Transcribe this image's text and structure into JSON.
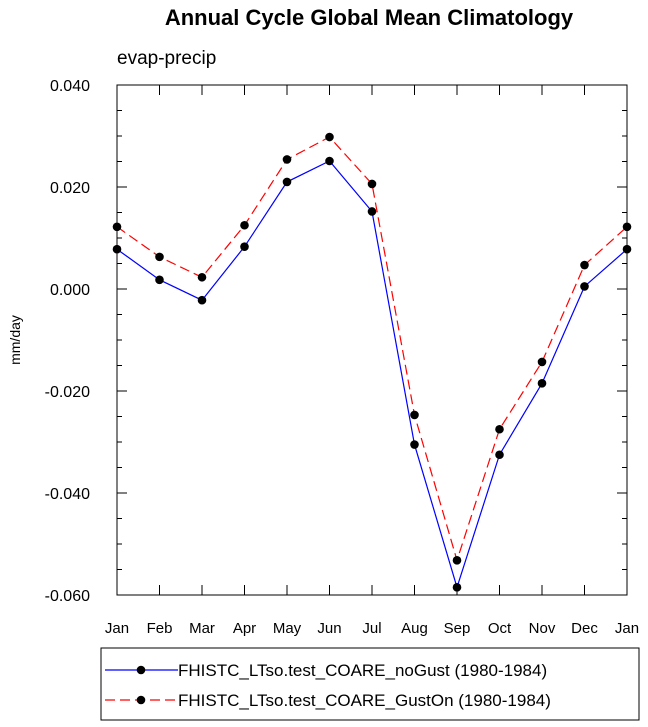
{
  "chart_data": {
    "type": "line",
    "title": "Annual Cycle Global Mean Climatology",
    "subtitle": "evap-precip",
    "xlabel": "",
    "ylabel": "mm/day",
    "categories": [
      "Jan",
      "Feb",
      "Mar",
      "Apr",
      "May",
      "Jun",
      "Jul",
      "Aug",
      "Sep",
      "Oct",
      "Nov",
      "Dec",
      "Jan"
    ],
    "ylim": [
      -0.06,
      0.04
    ],
    "yticks": [
      "0.040",
      "0.020",
      "0.000",
      "-0.020",
      "-0.040",
      "-0.060"
    ],
    "grid": false,
    "legend_position": "bottom",
    "series": [
      {
        "name": "FHISTC_LTso.test_COARE_noGust (1980-1984)",
        "color": "#0000ff",
        "dash": "solid",
        "values": [
          0.0078,
          0.0018,
          -0.0022,
          0.0083,
          0.021,
          0.0251,
          0.0152,
          -0.0305,
          -0.0585,
          -0.0325,
          -0.0185,
          0.0005,
          0.0078
        ]
      },
      {
        "name": "FHISTC_LTso.test_COARE_GustOn (1980-1984)",
        "color": "#ff0000",
        "dash": "dashed",
        "values": [
          0.0122,
          0.0063,
          0.0023,
          0.0125,
          0.0254,
          0.0298,
          0.0206,
          -0.0247,
          -0.0532,
          -0.0275,
          -0.0143,
          0.0047,
          0.0122
        ]
      }
    ]
  }
}
